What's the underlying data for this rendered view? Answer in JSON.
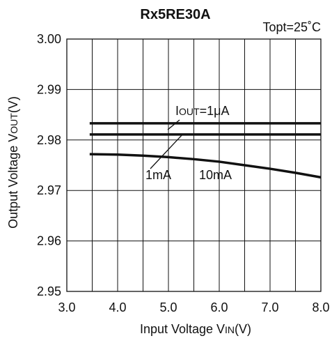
{
  "chart_data": {
    "type": "line",
    "title": "Rx5RE30A",
    "condition": "Topt=25˚C",
    "xlabel": {
      "prefix": "Input Voltage V",
      "subscript": "IN",
      "suffix": "(V)"
    },
    "ylabel": {
      "prefix": "Output Voltage V",
      "subscript": "OUT",
      "suffix": "(V)"
    },
    "xlim": [
      3.0,
      8.0
    ],
    "ylim": [
      2.95,
      3.0
    ],
    "x_ticks": [
      "3.0",
      "4.0",
      "5.0",
      "6.0",
      "7.0",
      "8.0"
    ],
    "y_ticks": [
      "2.95",
      "2.96",
      "2.97",
      "2.98",
      "2.99",
      "3.00"
    ],
    "grid": true,
    "x_grid_step": 0.5,
    "y_grid_step": 0.01,
    "series": [
      {
        "id": "1uA",
        "x": [
          3.45,
          8.0
        ],
        "y": [
          2.9833,
          2.9833
        ],
        "color": "#111111"
      },
      {
        "id": "1mA",
        "x": [
          3.45,
          8.0
        ],
        "y": [
          2.9811,
          2.9811
        ],
        "color": "#111111"
      },
      {
        "id": "10mA",
        "x": [
          3.45,
          4.0,
          4.5,
          5.0,
          5.5,
          6.0,
          6.5,
          7.0,
          7.5,
          8.0
        ],
        "y": [
          2.9772,
          2.9771,
          2.9769,
          2.9766,
          2.9762,
          2.9757,
          2.975,
          2.9743,
          2.9735,
          2.9726
        ],
        "color": "#111111"
      }
    ],
    "annotations": {
      "iout": {
        "prefix": "I",
        "subscript": "OUT",
        "suffix": "=1μA"
      },
      "label_1mA": "1mA",
      "label_10mA": "10mA"
    }
  }
}
